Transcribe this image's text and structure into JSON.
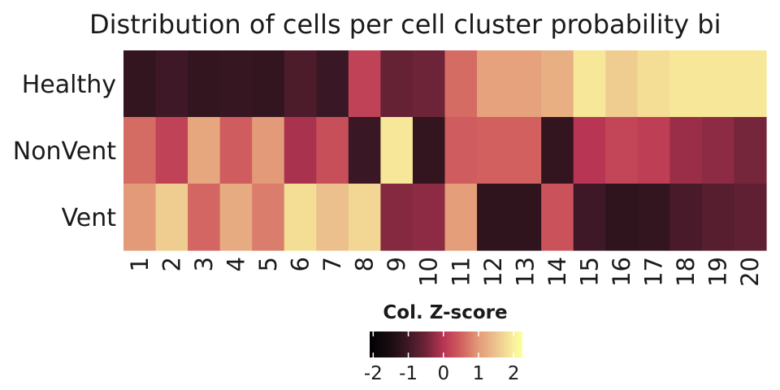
{
  "chart_data": {
    "type": "heatmap",
    "title": "Distribution of cells per cell cluster probability bi",
    "rows": [
      "Healthy",
      "NonVent",
      "Vent"
    ],
    "columns": [
      "1",
      "2",
      "3",
      "4",
      "5",
      "6",
      "7",
      "8",
      "9",
      "10",
      "11",
      "12",
      "13",
      "14",
      "15",
      "16",
      "17",
      "18",
      "19",
      "20"
    ],
    "values": [
      [
        -1.15,
        -1.0,
        -1.15,
        -1.1,
        -1.15,
        -0.85,
        -1.05,
        0.15,
        -0.6,
        -0.5,
        0.6,
        1.1,
        1.1,
        1.25,
        1.9,
        1.6,
        1.8,
        1.9,
        1.9,
        1.9
      ],
      [
        0.6,
        0.15,
        1.15,
        0.45,
        1.0,
        -0.1,
        0.3,
        -1.05,
        1.9,
        -1.15,
        0.45,
        0.5,
        0.5,
        -1.15,
        0.0,
        0.2,
        0.1,
        -0.2,
        -0.3,
        -0.45
      ],
      [
        1.0,
        1.6,
        0.55,
        1.2,
        0.75,
        1.8,
        1.45,
        1.7,
        -0.35,
        -0.3,
        1.05,
        -1.2,
        -1.2,
        0.35,
        -1.0,
        -1.2,
        -1.15,
        -0.9,
        -0.75,
        -0.65
      ]
    ],
    "colorbar": {
      "title": "Col. Z-score",
      "ticks": [
        "-2",
        "-1",
        "0",
        "1",
        "2"
      ],
      "tick_values": [
        -2,
        -1,
        0,
        1,
        2
      ],
      "range": [
        -2.1,
        2.25
      ],
      "gradient": [
        [
          -2.1,
          "#000004"
        ],
        [
          -1.4,
          "#1f0f14"
        ],
        [
          -1.0,
          "#3e1826"
        ],
        [
          -0.5,
          "#6e2438"
        ],
        [
          0.0,
          "#b83553"
        ],
        [
          0.5,
          "#d1605f"
        ],
        [
          1.0,
          "#e39a78"
        ],
        [
          1.5,
          "#edc48e"
        ],
        [
          2.0,
          "#f8f09c"
        ],
        [
          2.25,
          "#fcff9e"
        ]
      ]
    }
  }
}
